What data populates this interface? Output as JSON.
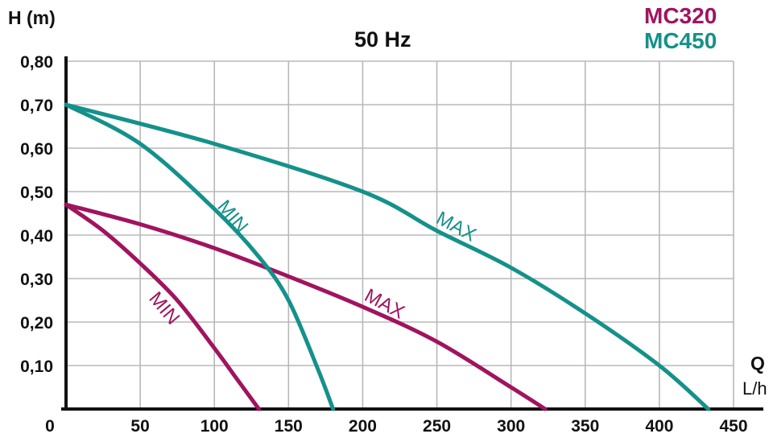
{
  "chart_data": {
    "type": "line",
    "title": "50 Hz",
    "ylabel": "H (m)",
    "xlabel": "Q",
    "xunit": "L/h",
    "x_ticks": [
      "0",
      "50",
      "100",
      "150",
      "200",
      "250",
      "300",
      "350",
      "400",
      "450"
    ],
    "y_ticks": [
      "0,10",
      "0,20",
      "0,30",
      "0,40",
      "0,50",
      "0,60",
      "0,70",
      "0,80"
    ],
    "xlim": [
      0,
      450
    ],
    "ylim": [
      0,
      0.8
    ],
    "grid": true,
    "legend_position": "top-right",
    "legend": [
      {
        "label": "MC320",
        "color": "#a0145f"
      },
      {
        "label": "MC450",
        "color": "#14918a"
      }
    ],
    "series": [
      {
        "model": "MC320",
        "label": "MIN",
        "color": "#a0145f",
        "x": [
          0,
          25,
          50,
          75,
          100,
          115,
          130
        ],
        "y": [
          0.47,
          0.41,
          0.335,
          0.25,
          0.14,
          0.07,
          0.0
        ]
      },
      {
        "model": "MC320",
        "label": "MAX",
        "color": "#a0145f",
        "x": [
          0,
          50,
          100,
          150,
          200,
          250,
          300,
          323
        ],
        "y": [
          0.47,
          0.425,
          0.37,
          0.305,
          0.235,
          0.155,
          0.05,
          0.0
        ]
      },
      {
        "model": "MC450",
        "label": "MIN",
        "color": "#14918a",
        "x": [
          0,
          50,
          100,
          130,
          150,
          170,
          180
        ],
        "y": [
          0.7,
          0.61,
          0.46,
          0.35,
          0.25,
          0.09,
          0.0
        ]
      },
      {
        "model": "MC450",
        "label": "MAX",
        "color": "#14918a",
        "x": [
          0,
          100,
          200,
          250,
          300,
          350,
          400,
          433
        ],
        "y": [
          0.7,
          0.61,
          0.5,
          0.41,
          0.325,
          0.22,
          0.1,
          0.0
        ]
      }
    ]
  }
}
